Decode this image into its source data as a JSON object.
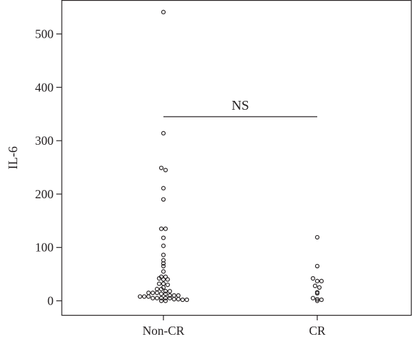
{
  "chart_data": {
    "type": "scatter",
    "xlabel": "",
    "ylabel": "IL-6",
    "categories": [
      "Non-CR",
      "CR"
    ],
    "ylim": [
      -25,
      565
    ],
    "yticks": [
      0,
      100,
      200,
      300,
      400,
      500
    ],
    "grid": false,
    "series": [
      {
        "category": "Non-CR",
        "values": [
          541,
          314,
          249,
          245,
          211,
          190,
          135,
          135,
          118,
          103,
          86,
          76,
          70,
          65,
          55,
          45,
          45,
          42,
          40,
          40,
          32,
          32,
          30,
          25,
          22,
          22,
          18,
          18,
          15,
          15,
          15,
          13,
          13,
          10,
          10,
          10,
          8,
          8,
          8,
          5,
          5,
          5,
          5,
          5,
          3,
          3,
          2,
          2,
          0,
          0
        ]
      },
      {
        "category": "CR",
        "values": [
          119,
          65,
          42,
          37,
          37,
          28,
          25,
          16,
          14,
          5,
          3,
          2,
          0
        ]
      }
    ],
    "annotations": [
      {
        "text": "NS",
        "from": "Non-CR",
        "to": "CR",
        "y": 345
      }
    ]
  }
}
